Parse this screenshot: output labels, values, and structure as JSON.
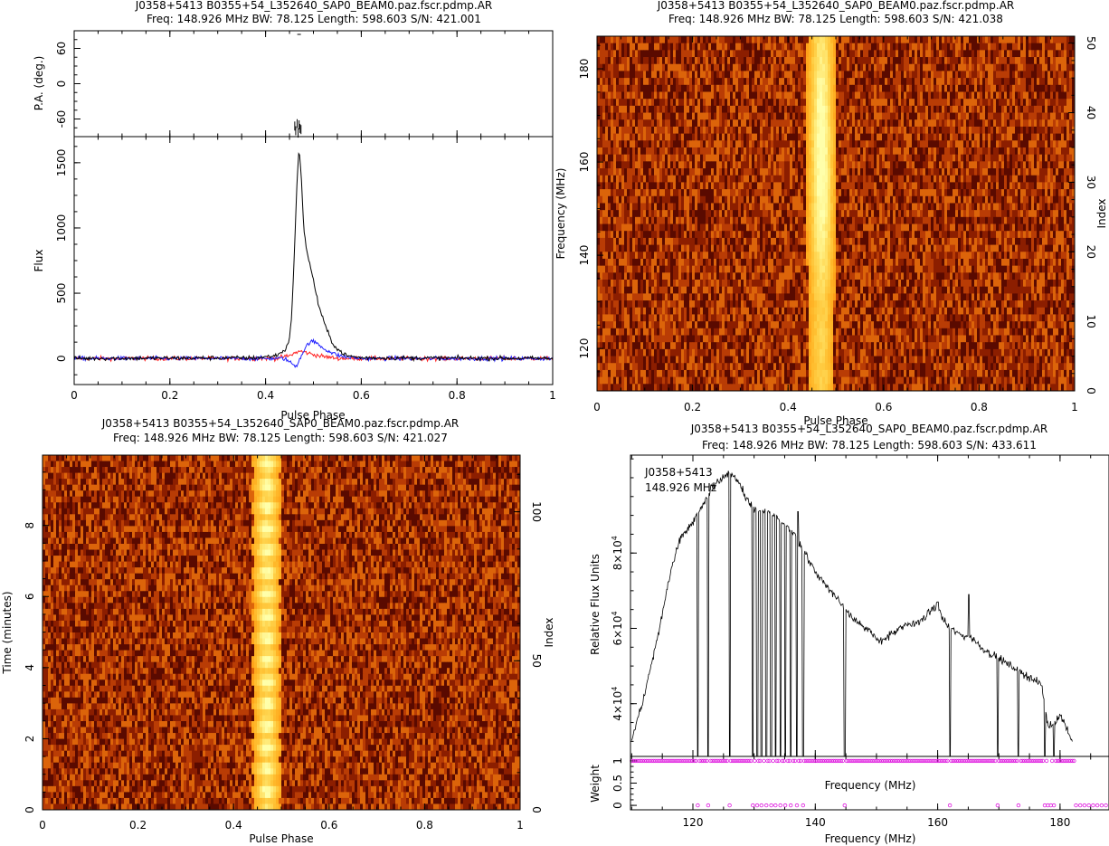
{
  "panels": {
    "profile": {
      "title": "J0358+5413  B0355+54_L352640_SAP0_BEAM0.paz.fscr.pdmp.AR",
      "subtitle": "Freq: 148.926 MHz BW: 78.125 Length: 598.603 S/N: 421.001"
    },
    "phase_freq": {
      "title": "J0358+5413  B0355+54_L352640_SAP0_BEAM0.paz.fscr.pdmp.AR",
      "subtitle": "Freq: 148.926 MHz BW: 78.125 Length: 598.603 S/N: 421.038"
    },
    "phase_time": {
      "title": "J0358+5413  B0355+54_L352640_SAP0_BEAM0.paz.fscr.pdmp.AR",
      "subtitle": "Freq: 148.926 MHz BW: 78.125 Length: 598.603 S/N: 421.027"
    },
    "bandpass": {
      "title": "J0358+5413  B0355+54_L352640_SAP0_BEAM0.paz.fscr.pdmp.AR",
      "subtitle": "Freq: 148.926 MHz BW: 78.125 Length: 598.603 S/N: 433.611",
      "annotation_line1": "J0358+5413",
      "annotation_line2": "148.926 MHz"
    }
  },
  "colors": {
    "total_intensity": "#000000",
    "linear_pol": "#ff2020",
    "circular_pol": "#2020ff",
    "weights": "#e020e0",
    "heat_dark": "#5a0a00",
    "heat_bright": "#ffffa0"
  },
  "chart_data": [
    {
      "type": "line",
      "id": "pa_panel",
      "ylabel": "P.A. (deg.)",
      "xlim": [
        0,
        1
      ],
      "ylim": [
        -90,
        90
      ],
      "yticks": [
        -60,
        0,
        60
      ],
      "points_x": [
        0.461,
        0.463,
        0.466,
        0.468,
        0.47,
        0.472,
        0.474
      ],
      "points_y": [
        -72,
        -80,
        -68,
        -84,
        -70,
        -76,
        -78
      ]
    },
    {
      "type": "line",
      "id": "flux_profile",
      "xlabel": "Pulse Phase",
      "ylabel": "Flux",
      "xlim": [
        0,
        1
      ],
      "ylim": [
        -200,
        1700
      ],
      "xticks": [
        0,
        0.2,
        0.4,
        0.6,
        0.8,
        1
      ],
      "xtick_labels": [
        "0",
        "0.2",
        "0.4",
        "0.6",
        "0.8",
        "1"
      ],
      "yticks": [
        0,
        500,
        1000,
        1500
      ],
      "series": [
        {
          "color_key": "total_intensity",
          "x": [
            0.0,
            0.38,
            0.42,
            0.44,
            0.45,
            0.455,
            0.46,
            0.465,
            0.47,
            0.475,
            0.48,
            0.485,
            0.49,
            0.5,
            0.51,
            0.52,
            0.53,
            0.54,
            0.55,
            0.57,
            0.6,
            1.0
          ],
          "y": [
            0,
            5,
            20,
            60,
            150,
            350,
            800,
            1300,
            1620,
            1350,
            1000,
            850,
            760,
            600,
            420,
            300,
            200,
            120,
            70,
            20,
            5,
            0
          ]
        },
        {
          "color_key": "linear_pol",
          "x": [
            0.0,
            0.42,
            0.45,
            0.46,
            0.47,
            0.48,
            0.49,
            0.5,
            0.52,
            0.54,
            0.56,
            1.0
          ],
          "y": [
            0,
            0,
            20,
            40,
            55,
            50,
            40,
            30,
            15,
            5,
            0,
            0
          ]
        },
        {
          "color_key": "circular_pol",
          "x": [
            0.0,
            0.44,
            0.455,
            0.465,
            0.47,
            0.48,
            0.49,
            0.5,
            0.51,
            0.52,
            0.54,
            0.56,
            0.6,
            1.0
          ],
          "y": [
            0,
            0,
            -40,
            -60,
            -10,
            60,
            120,
            130,
            110,
            80,
            40,
            15,
            0,
            0
          ]
        }
      ]
    },
    {
      "type": "heatmap",
      "id": "phase_vs_frequency",
      "xlabel": "Pulse Phase",
      "ylabel": "Frequency (MHz)",
      "y2label": "Index",
      "xlim": [
        0,
        1
      ],
      "ylim": [
        110.9,
        187.0
      ],
      "y2lim": [
        0,
        51
      ],
      "xticks": [
        0,
        0.2,
        0.4,
        0.6,
        0.8,
        1
      ],
      "xtick_labels": [
        "0",
        "0.2",
        "0.4",
        "0.6",
        "0.8",
        "1"
      ],
      "yticks": [
        120,
        140,
        160,
        180
      ],
      "y2ticks": [
        0,
        10,
        20,
        30,
        40,
        50
      ],
      "pulse_center": 0.47,
      "pulse_width": 0.03
    },
    {
      "type": "heatmap",
      "id": "phase_vs_time",
      "xlabel": "Pulse Phase",
      "ylabel": "Time (minutes)",
      "y2label": "Index",
      "xlim": [
        0,
        1
      ],
      "ylim": [
        0,
        9.977
      ],
      "y2lim": [
        0,
        119
      ],
      "xticks": [
        0,
        0.2,
        0.4,
        0.6,
        0.8,
        1
      ],
      "xtick_labels": [
        "0",
        "0.2",
        "0.4",
        "0.6",
        "0.8",
        "1"
      ],
      "yticks": [
        0,
        2,
        4,
        6,
        8
      ],
      "y2ticks": [
        0,
        50,
        100
      ],
      "pulse_center": 0.47,
      "pulse_width": 0.03
    },
    {
      "type": "line",
      "id": "bandpass_spectrum",
      "xlabel": "Frequency (MHz)",
      "ylabel": "Relative Flux Units",
      "xlim": [
        109.8,
        188.0
      ],
      "ylim": [
        26000,
        106000
      ],
      "xticks": [
        120,
        140,
        160,
        180
      ],
      "yticks": [
        40000,
        60000,
        80000
      ],
      "ytick_labels": [
        {
          "mant": "4×10",
          "exp": "4"
        },
        {
          "mant": "6×10",
          "exp": "4"
        },
        {
          "mant": "8×10",
          "exp": "4"
        }
      ],
      "x": [
        110.0,
        111.0,
        112.0,
        113.0,
        114.0,
        115.0,
        116.0,
        117.0,
        118.0,
        119.0,
        120.0,
        121.0,
        122.0,
        123.0,
        124.0,
        125.0,
        126.0,
        127.0,
        128.0,
        129.0,
        130.0,
        131.0,
        132.0,
        133.0,
        134.0,
        135.0,
        136.0,
        137.0,
        138.0,
        139.0,
        140.0,
        141.0,
        142.0,
        143.0,
        144.0,
        145.0,
        146.0,
        147.0,
        148.0,
        149.0,
        150.0,
        151.0,
        152.0,
        153.0,
        154.0,
        155.0,
        156.0,
        157.0,
        158.0,
        159.0,
        160.0,
        161.0,
        162.0,
        163.0,
        164.0,
        165.0,
        166.0,
        167.0,
        168.0,
        169.0,
        170.0,
        171.0,
        172.0,
        173.0,
        174.0,
        175.0,
        176.0,
        177.0,
        178.0,
        179.0,
        180.0,
        181.0,
        182.0
      ],
      "y": [
        30000,
        36000,
        42000,
        49000,
        56000,
        64000,
        72000,
        79000,
        84000,
        86000,
        88000,
        91000,
        94000,
        97000,
        99000,
        100000,
        101000,
        100000,
        97000,
        94000,
        92000,
        91000,
        91000,
        90000,
        89000,
        88000,
        86000,
        84000,
        81000,
        78000,
        75000,
        73000,
        71000,
        69000,
        67000,
        65000,
        63000,
        62000,
        60000,
        59000,
        57000,
        57000,
        58000,
        59000,
        60000,
        61000,
        61000,
        62000,
        63000,
        65000,
        66000,
        62000,
        60000,
        59000,
        58000,
        58000,
        57000,
        55000,
        54000,
        53000,
        52000,
        51000,
        50000,
        49000,
        48000,
        47000,
        46000,
        45000,
        34000,
        35000,
        37000,
        34000,
        30000
      ],
      "dropouts": [
        120.8,
        122.5,
        126.0,
        129.8,
        130.5,
        131.2,
        132.0,
        132.8,
        133.5,
        134.3,
        135.1,
        136.0,
        137.0,
        138.0,
        144.8,
        162.0,
        169.8,
        173.2,
        177.5,
        179.0
      ],
      "spikes": [
        {
          "x": 137.2,
          "y": 91000
        },
        {
          "x": 160.0,
          "y": 67000
        },
        {
          "x": 165.1,
          "y": 69000
        }
      ]
    },
    {
      "type": "scatter",
      "id": "channel_weights",
      "xlabel": "Frequency (MHz)",
      "ylabel": "Weight",
      "xlim": [
        109.8,
        188.0
      ],
      "ylim": [
        -0.1,
        1.1
      ],
      "xticks": [
        120,
        140,
        160,
        180
      ],
      "yticks": [
        0,
        0.5,
        1
      ],
      "ytick_labels": [
        "0",
        "0.5",
        "1"
      ],
      "band_start": 110.0,
      "band_end": 182.5,
      "zero_weight_channels": [
        120.8,
        122.5,
        126.0,
        129.8,
        130.5,
        131.2,
        132.0,
        132.8,
        133.5,
        134.3,
        135.1,
        136.0,
        137.0,
        138.0,
        144.8,
        162.0,
        169.8,
        173.2,
        177.5,
        178.0,
        178.5,
        179.0,
        182.6,
        183.3,
        184.0,
        184.7,
        185.4,
        186.1,
        186.8,
        187.5
      ]
    }
  ]
}
